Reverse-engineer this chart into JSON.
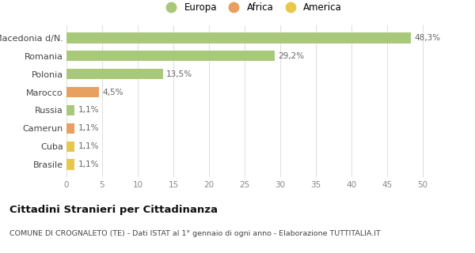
{
  "categories": [
    "Brasile",
    "Cuba",
    "Camerun",
    "Russia",
    "Marocco",
    "Polonia",
    "Romania",
    "Macedonia d/N."
  ],
  "values": [
    1.1,
    1.1,
    1.1,
    1.1,
    4.5,
    13.5,
    29.2,
    48.3
  ],
  "colors": [
    "#e8c84a",
    "#e8c84a",
    "#e8a060",
    "#a8c87a",
    "#e8a060",
    "#a8c87a",
    "#a8c87a",
    "#a8c87a"
  ],
  "labels": [
    "1,1%",
    "1,1%",
    "1,1%",
    "1,1%",
    "4,5%",
    "13,5%",
    "29,2%",
    "48,3%"
  ],
  "legend": [
    {
      "label": "Europa",
      "color": "#a8c87a"
    },
    {
      "label": "Africa",
      "color": "#e8a060"
    },
    {
      "label": "America",
      "color": "#e8c84a"
    }
  ],
  "xlim": [
    0,
    52
  ],
  "xticks": [
    0,
    5,
    10,
    15,
    20,
    25,
    30,
    35,
    40,
    45,
    50
  ],
  "title": "Cittadini Stranieri per Cittadinanza",
  "subtitle": "COMUNE DI CROGNALETO (TE) - Dati ISTAT al 1° gennaio di ogni anno - Elaborazione TUTTITALIA.IT",
  "bg_color": "#ffffff",
  "grid_color": "#e0e0e0",
  "bar_height": 0.6,
  "label_color": "#666666",
  "ytick_color": "#444444"
}
